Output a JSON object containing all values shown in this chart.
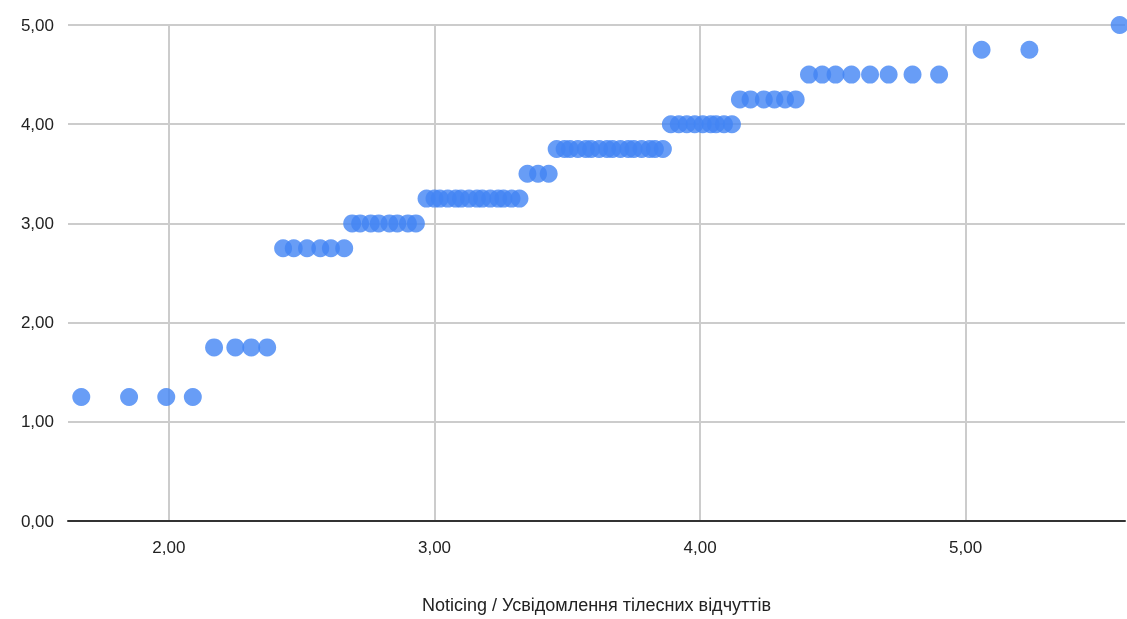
{
  "chart_data": {
    "type": "scatter",
    "xlabel": "Noticing / Усвідомлення тілесних відчуттів",
    "x": [
      1.67,
      1.85,
      1.99,
      2.09,
      2.17,
      2.25,
      2.31,
      2.37,
      2.43,
      2.47,
      2.52,
      2.57,
      2.61,
      2.66,
      2.69,
      2.72,
      2.76,
      2.79,
      2.83,
      2.86,
      2.9,
      2.93,
      2.97,
      3.0,
      3.02,
      3.05,
      3.08,
      3.1,
      3.13,
      3.16,
      3.18,
      3.21,
      3.24,
      3.26,
      3.29,
      3.32,
      3.35,
      3.39,
      3.43,
      3.46,
      3.49,
      3.51,
      3.54,
      3.57,
      3.59,
      3.62,
      3.65,
      3.67,
      3.7,
      3.73,
      3.75,
      3.78,
      3.81,
      3.83,
      3.86,
      3.89,
      3.92,
      3.95,
      3.98,
      4.01,
      4.04,
      4.06,
      4.09,
      4.12,
      4.15,
      4.19,
      4.24,
      4.28,
      4.32,
      4.36,
      4.41,
      4.46,
      4.51,
      4.57,
      4.64,
      4.71,
      4.8,
      4.9,
      5.06,
      5.24,
      5.58
    ],
    "series": [
      {
        "color": "#4285f4",
        "values": [
          1.25,
          1.25,
          1.25,
          1.25,
          1.75,
          1.75,
          1.75,
          1.75,
          2.75,
          2.75,
          2.75,
          2.75,
          2.75,
          2.75,
          3.0,
          3.0,
          3.0,
          3.0,
          3.0,
          3.0,
          3.0,
          3.0,
          3.25,
          3.25,
          3.25,
          3.25,
          3.25,
          3.25,
          3.25,
          3.25,
          3.25,
          3.25,
          3.25,
          3.25,
          3.25,
          3.25,
          3.5,
          3.5,
          3.5,
          3.75,
          3.75,
          3.75,
          3.75,
          3.75,
          3.75,
          3.75,
          3.75,
          3.75,
          3.75,
          3.75,
          3.75,
          3.75,
          3.75,
          3.75,
          3.75,
          4.0,
          4.0,
          4.0,
          4.0,
          4.0,
          4.0,
          4.0,
          4.0,
          4.0,
          4.25,
          4.25,
          4.25,
          4.25,
          4.25,
          4.25,
          4.5,
          4.5,
          4.5,
          4.5,
          4.5,
          4.5,
          4.5,
          4.5,
          4.75,
          4.75,
          5.0
        ]
      }
    ],
    "xlim": [
      1.62,
      5.6
    ],
    "xticks": [
      {
        "value": 2,
        "label": "2,00"
      },
      {
        "value": 3,
        "label": "3,00"
      },
      {
        "value": 4,
        "label": "4,00"
      },
      {
        "value": 5,
        "label": "5,00"
      }
    ],
    "ylim": [
      0,
      5
    ],
    "yticks": [
      {
        "value": 0,
        "label": "0,00"
      },
      {
        "value": 1,
        "label": "1,00"
      },
      {
        "value": 2,
        "label": "2,00"
      },
      {
        "value": 3,
        "label": "3,00"
      },
      {
        "value": 4,
        "label": "4,00"
      },
      {
        "value": 5,
        "label": "5,00"
      }
    ],
    "grid": true,
    "marker": "circle"
  }
}
